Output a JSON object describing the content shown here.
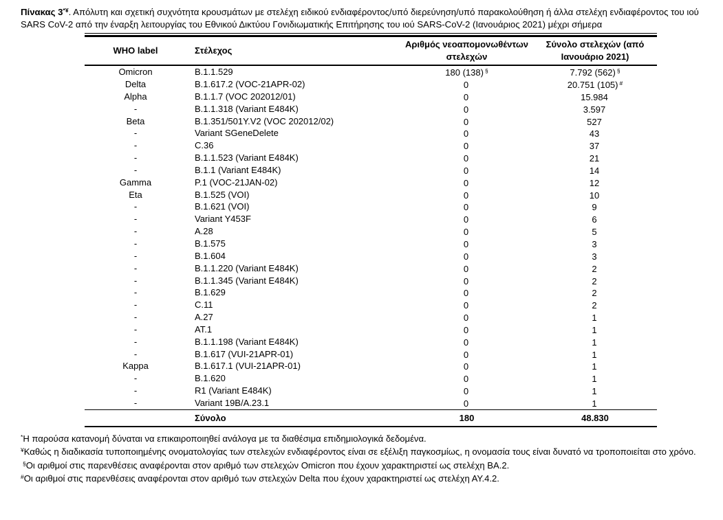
{
  "title": {
    "prefix": "Πίνακας 3",
    "sup": "*¥",
    "rest": ". Απόλυτη και σχετική συχνότητα κρουσμάτων με στελέχη ειδικού ενδιαφέροντος/υπό διερεύνηση/υπό παρακολούθηση ή άλλα στελέχη ενδιαφέροντος του ιού SARS CoV-2 από την έναρξη λειτουργίας του Εθνικού Δικτύου Γονιδιωματικής Επιτήρησης του ιού SARS-CoV-2 (Ιανουάριος 2021) μέχρι σήμερα"
  },
  "table": {
    "columns": [
      "WHO label",
      "Στέλεχος",
      "Αριθμός νεοαπομονωθέντων στελεχών",
      "Σύνολο στελεχών (από Ιανουάριο 2021)"
    ],
    "rows": [
      {
        "who": "Omicron",
        "strain": "B.1.1.529",
        "new": "180 (138)",
        "new_sup": "§",
        "total": "7.792 (562)",
        "total_sup": "§"
      },
      {
        "who": "Delta",
        "strain": "B.1.617.2 (VOC-21APR-02)",
        "new": "0",
        "total": "20.751 (105)",
        "total_sup": "#"
      },
      {
        "who": "Alpha",
        "strain": "B.1.1.7 (VOC 202012/01)",
        "new": "0",
        "total": "15.984"
      },
      {
        "who": "-",
        "strain": "B.1.1.318 (Variant E484K)",
        "new": "0",
        "total": "3.597"
      },
      {
        "who": "Beta",
        "strain": "B.1.351/501Y.V2 (VOC 202012/02)",
        "new": "0",
        "total": "527"
      },
      {
        "who": "-",
        "strain": "Variant SGeneDelete",
        "new": "0",
        "total": "43"
      },
      {
        "who": "-",
        "strain": "C.36",
        "new": "0",
        "total": "37"
      },
      {
        "who": "-",
        "strain": "B.1.1.523 (Variant E484K)",
        "new": "0",
        "total": "21"
      },
      {
        "who": "-",
        "strain": "B.1.1 (Variant E484K)",
        "new": "0",
        "total": "14"
      },
      {
        "who": "Gamma",
        "strain": "P.1 (VOC-21JAN-02)",
        "new": "0",
        "total": "12"
      },
      {
        "who": "Eta",
        "strain": "B.1.525 (VOI)",
        "new": "0",
        "total": "10"
      },
      {
        "who": "-",
        "strain": "B.1.621 (VOI)",
        "new": "0",
        "total": "9"
      },
      {
        "who": "-",
        "strain": "Variant Y453F",
        "new": "0",
        "total": "6"
      },
      {
        "who": "-",
        "strain": "A.28",
        "new": "0",
        "total": "5"
      },
      {
        "who": "-",
        "strain": "B.1.575",
        "new": "0",
        "total": "3"
      },
      {
        "who": "-",
        "strain": "B.1.604",
        "new": "0",
        "total": "3"
      },
      {
        "who": "-",
        "strain": "B.1.1.220 (Variant E484K)",
        "new": "0",
        "total": "2"
      },
      {
        "who": "-",
        "strain": "B.1.1.345 (Variant E484K)",
        "new": "0",
        "total": "2"
      },
      {
        "who": "-",
        "strain": "B.1.629",
        "new": "0",
        "total": "2"
      },
      {
        "who": "-",
        "strain": "C.11",
        "new": "0",
        "total": "2"
      },
      {
        "who": "-",
        "strain": "A.27",
        "new": "0",
        "total": "1"
      },
      {
        "who": "-",
        "strain": "AT.1",
        "new": "0",
        "total": "1"
      },
      {
        "who": "-",
        "strain": "B.1.1.198 (Variant E484K)",
        "new": "0",
        "total": "1"
      },
      {
        "who": "-",
        "strain": "B.1.617 (VUI-21APR-01)",
        "new": "0",
        "total": "1"
      },
      {
        "who": "Kappa",
        "strain": "B.1.617.1 (VUI-21APR-01)",
        "new": "0",
        "total": "1"
      },
      {
        "who": "-",
        "strain": "B.1.620",
        "new": "0",
        "total": "1"
      },
      {
        "who": "-",
        "strain": "R1 (Variant E484K)",
        "new": "0",
        "total": "1"
      },
      {
        "who": "-",
        "strain": "Variant 19B/A.23.1",
        "new": "0",
        "total": "1"
      }
    ],
    "total": {
      "label": "Σύνολο",
      "new": "180",
      "total": "48.830"
    }
  },
  "footnotes": [
    {
      "sym": "*",
      "text": "Η παρούσα κατανομή δύναται να επικαιροποιηθεί ανάλογα με τα διαθέσιμα επιδημιολογικά δεδομένα."
    },
    {
      "sym": "¥",
      "text": "Καθώς η διαδικασία τυποποιημένης ονοματολογίας των στελεχών ενδιαφέροντος είναι σε εξέλιξη παγκοσμίως, η ονομασία τους είναι δυνατό να τροποποιείται στο χρόνο."
    },
    {
      "sym": "§",
      "text": "Οι αριθμοί στις παρενθέσεις αναφέρονται στον αριθμό των στελεχών Omicron που έχουν χαρακτηριστεί ως στελέχη ΒΑ.2."
    },
    {
      "sym": "#",
      "text": "Οι αριθμοί στις παρενθέσεις αναφέρονται στον αριθμό των στελεχών Delta που έχουν χαρακτηριστεί ως στελέχη ΑΥ.4.2."
    }
  ]
}
